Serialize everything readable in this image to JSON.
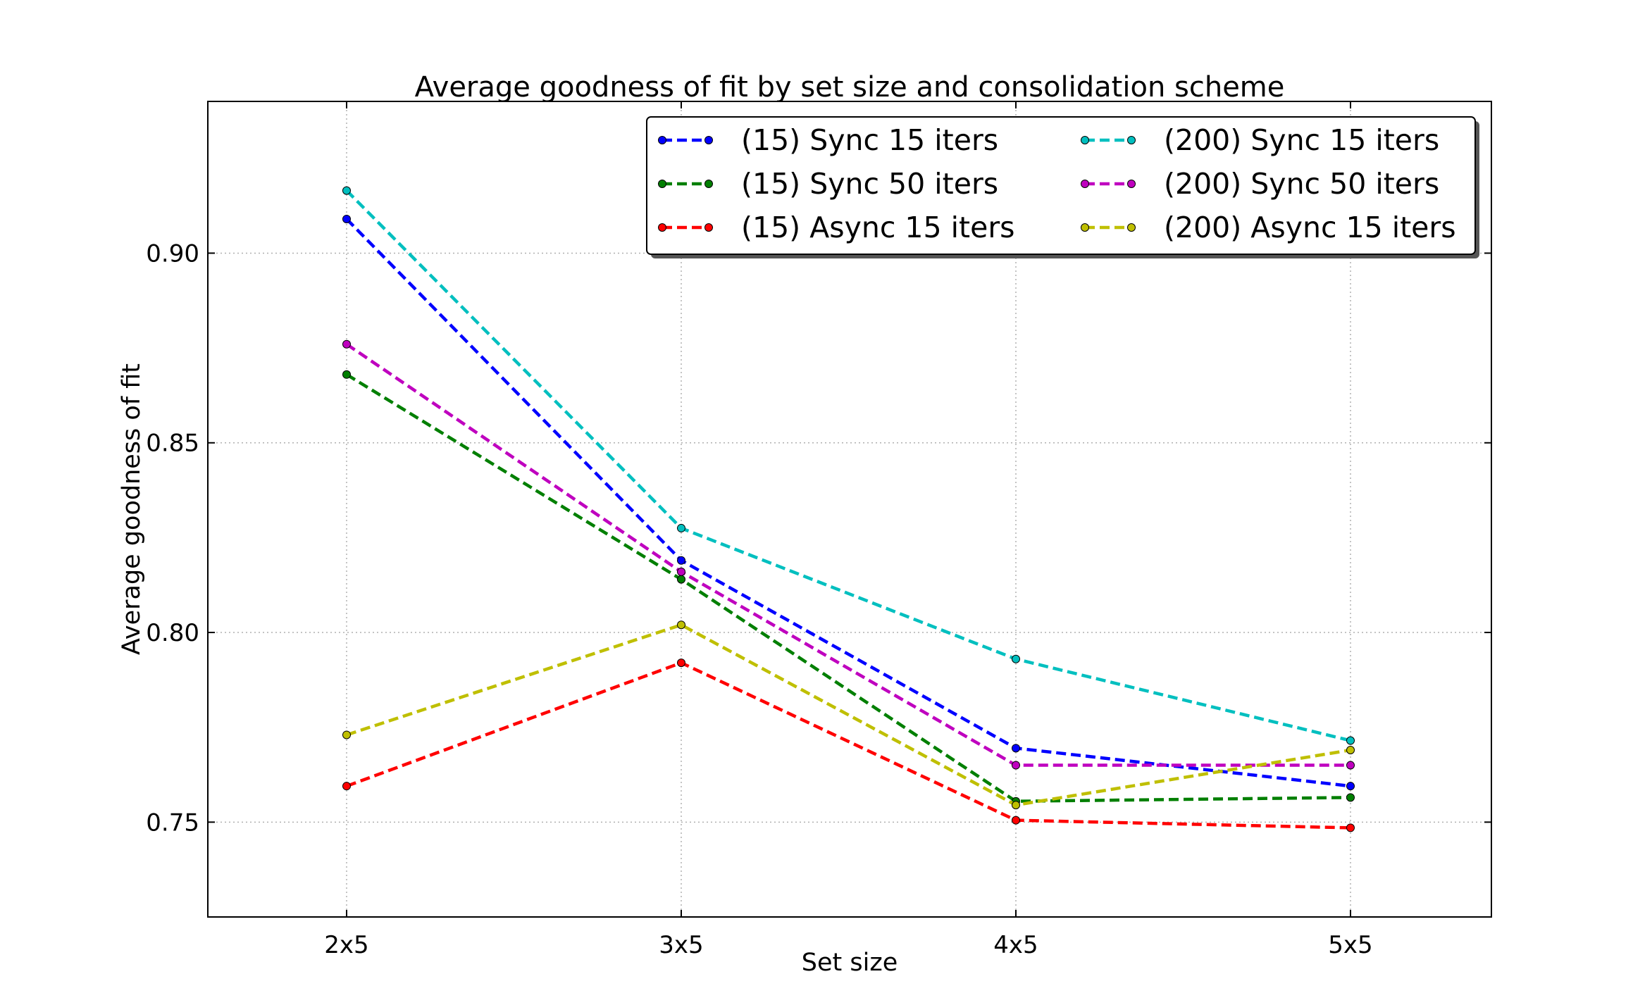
{
  "chart_data": {
    "type": "line",
    "title": "Average goodness of fit by set size and consolidation scheme",
    "xlabel": "Set size",
    "ylabel": "Average goodness of fit",
    "categories": [
      "2x5",
      "3x5",
      "4x5",
      "5x5"
    ],
    "ylim": [
      0.725,
      0.94
    ],
    "yticks": [
      0.75,
      0.8,
      0.85,
      0.9
    ],
    "ytick_labels": [
      "0.75",
      "0.80",
      "0.85",
      "0.90"
    ],
    "grid": true,
    "grid_style": "dotted",
    "legend_position": "top-right",
    "line_style": "dashed",
    "series": [
      {
        "name": "(15) Sync 15 iters",
        "color": "#0000ff",
        "values": [
          0.909,
          0.819,
          0.7695,
          0.7595
        ]
      },
      {
        "name": "(15) Sync 50 iters",
        "color": "#007f00",
        "values": [
          0.868,
          0.814,
          0.7555,
          0.7565
        ]
      },
      {
        "name": "(15) Async 15 iters",
        "color": "#ff0000",
        "values": [
          0.7595,
          0.792,
          0.7505,
          0.7485
        ]
      },
      {
        "name": "(200) Sync 15 iters",
        "color": "#00bfbf",
        "values": [
          0.9165,
          0.8275,
          0.793,
          0.7715
        ]
      },
      {
        "name": "(200) Sync 50 iters",
        "color": "#bf00bf",
        "values": [
          0.876,
          0.816,
          0.765,
          0.765
        ]
      },
      {
        "name": "(200) Async 15 iters",
        "color": "#bfbf00",
        "values": [
          0.773,
          0.802,
          0.7545,
          0.769
        ]
      }
    ]
  }
}
